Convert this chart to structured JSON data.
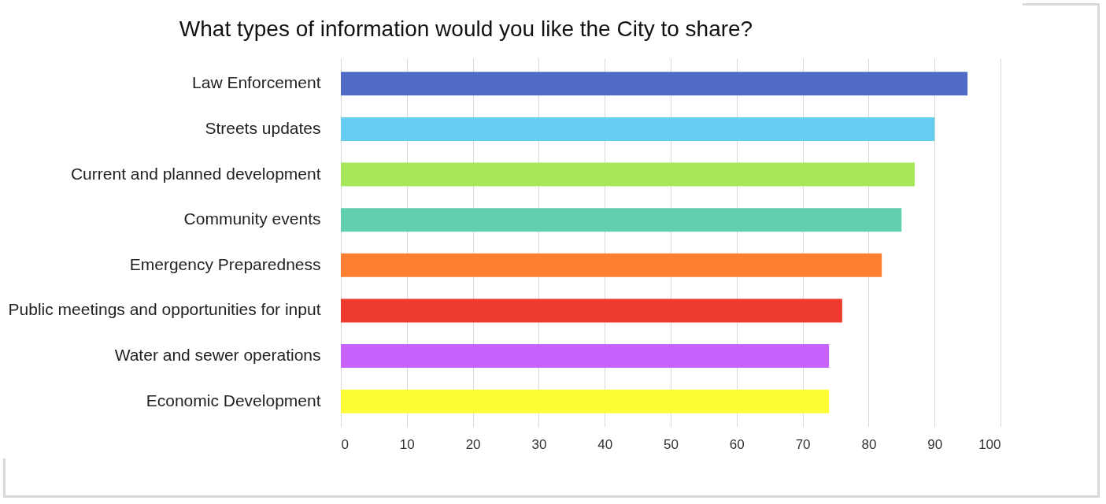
{
  "chart_data": {
    "type": "bar",
    "orientation": "horizontal",
    "title": "What types of information would you like the City to share?",
    "categories": [
      "Law Enforcement",
      "Streets updates",
      "Current and planned development",
      "Community events",
      "Emergency Preparedness",
      "Public meetings and opportunities for input",
      "Water and sewer operations",
      "Economic Development"
    ],
    "values": [
      95,
      90,
      87,
      85,
      82,
      76,
      74,
      74
    ],
    "colors": [
      "#4f6bc6",
      "#66ccf0",
      "#a6e85a",
      "#62cfae",
      "#fe7f31",
      "#ee3b30",
      "#c762fe",
      "#fdfd36"
    ],
    "xlim": [
      0,
      100
    ],
    "xticks": [
      0,
      10,
      20,
      30,
      40,
      50,
      60,
      70,
      80,
      90,
      100
    ],
    "grid": "x"
  }
}
